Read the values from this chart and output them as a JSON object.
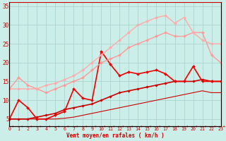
{
  "xlabel": "Vent moyen/en rafales ( km/h )",
  "xlim": [
    0,
    23
  ],
  "ylim": [
    3,
    36
  ],
  "yticks": [
    5,
    10,
    15,
    20,
    25,
    30,
    35
  ],
  "xticks": [
    0,
    1,
    2,
    3,
    4,
    5,
    6,
    7,
    8,
    9,
    10,
    11,
    12,
    13,
    14,
    15,
    16,
    17,
    18,
    19,
    20,
    21,
    22,
    23
  ],
  "bg_color": "#cceee8",
  "grid_color": "#aad4ce",
  "series": [
    {
      "x": [
        0,
        1,
        2,
        3,
        4,
        5,
        6,
        7,
        8,
        9,
        10,
        11,
        12,
        13,
        14,
        15,
        16,
        17,
        18,
        19,
        20,
        21,
        22,
        23
      ],
      "y": [
        5,
        5,
        5,
        5,
        5,
        5,
        5.2,
        5.5,
        6,
        6.5,
        7,
        7.5,
        8,
        8.5,
        9,
        9.5,
        10,
        10.5,
        11,
        11.5,
        12,
        12.5,
        12,
        12
      ],
      "color": "#cc0000",
      "linewidth": 0.8,
      "marker": null,
      "linestyle": "-"
    },
    {
      "x": [
        0,
        1,
        2,
        3,
        4,
        5,
        6,
        7,
        8,
        9,
        10,
        11,
        12,
        13,
        14,
        15,
        16,
        17,
        18,
        19,
        20,
        21,
        22,
        23
      ],
      "y": [
        5,
        5,
        5,
        5.5,
        6,
        6.5,
        7.5,
        8,
        8.5,
        9,
        10,
        11,
        12,
        12.5,
        13,
        13.5,
        14,
        14.5,
        15,
        15,
        15,
        15.5,
        15,
        15
      ],
      "color": "#cc0000",
      "linewidth": 1.2,
      "marker": "D",
      "markersize": 1.8,
      "linestyle": "-"
    },
    {
      "x": [
        0,
        1,
        2,
        3,
        4,
        5,
        6,
        7,
        8,
        9,
        10,
        11,
        12,
        13,
        14,
        15,
        16,
        17,
        18,
        19,
        20,
        21,
        22,
        23
      ],
      "y": [
        5,
        10,
        8,
        5,
        5,
        6,
        7,
        13,
        10.5,
        10,
        23,
        19.5,
        16.5,
        17.5,
        17,
        17.5,
        18,
        17,
        15,
        15,
        19,
        15,
        15,
        15
      ],
      "color": "#ee0000",
      "linewidth": 1.2,
      "marker": "D",
      "markersize": 2.0,
      "linestyle": "-"
    },
    {
      "x": [
        0,
        1,
        2,
        3,
        4,
        5,
        6,
        7,
        8,
        9,
        10,
        11,
        12,
        13,
        14,
        15,
        16,
        17,
        18,
        19,
        20,
        21,
        22,
        23
      ],
      "y": [
        13,
        16,
        14,
        13,
        12,
        13,
        14,
        15,
        16,
        18,
        20,
        21,
        22,
        24,
        25,
        26,
        27,
        28,
        27,
        27,
        28,
        28,
        22,
        20
      ],
      "color": "#ff9999",
      "linewidth": 1.0,
      "marker": "D",
      "markersize": 2.0,
      "linestyle": "-"
    },
    {
      "x": [
        0,
        1,
        2,
        3,
        4,
        5,
        6,
        7,
        8,
        9,
        10,
        11,
        12,
        13,
        14,
        15,
        16,
        17,
        18,
        19,
        20,
        21,
        22,
        23
      ],
      "y": [
        13,
        13,
        13,
        13,
        14,
        14.5,
        15.5,
        16.5,
        18,
        20,
        22,
        24,
        26,
        28,
        30,
        31,
        32,
        32.5,
        30.5,
        32,
        28,
        26,
        25,
        25
      ],
      "color": "#ffaaaa",
      "linewidth": 1.0,
      "marker": "D",
      "markersize": 2.0,
      "linestyle": "-"
    }
  ]
}
